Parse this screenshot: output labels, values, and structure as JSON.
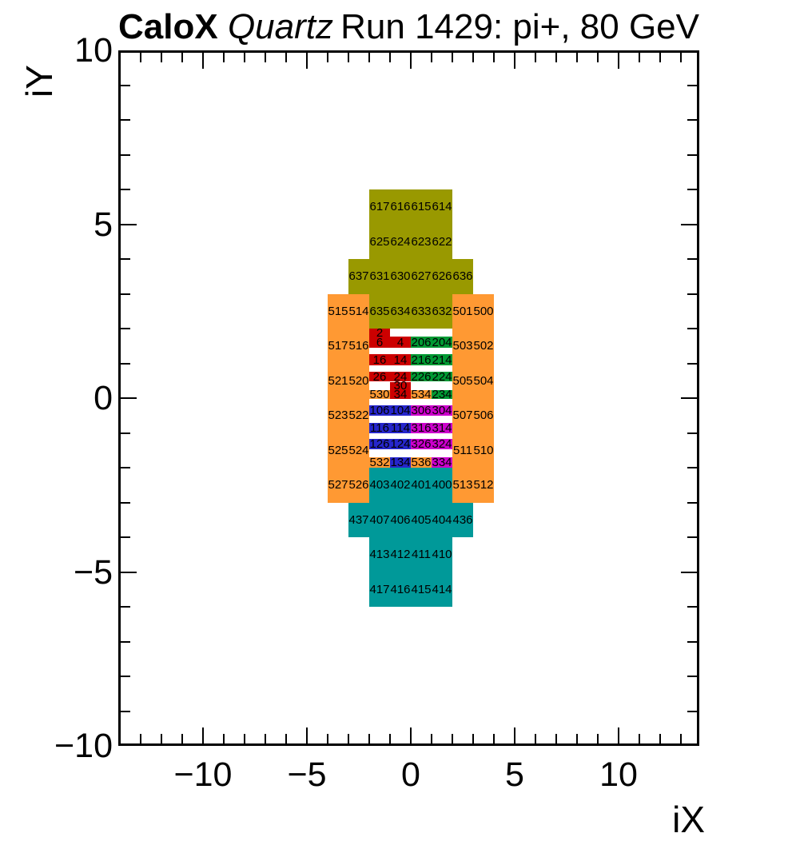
{
  "title": {
    "experiment": "CaloX",
    "subtitle": "Quartz",
    "run_info": "Run 1429: pi+, 80 GeV"
  },
  "axes": {
    "x": {
      "title": "iX",
      "major_ticks": [
        -10,
        -5,
        0,
        5,
        10
      ],
      "tick_labels": [
        "−10",
        "−5",
        "0",
        "5",
        "10"
      ],
      "minor_tick_step": 1,
      "range": [
        -14,
        14
      ]
    },
    "y": {
      "title": "iY",
      "major_ticks": [
        -10,
        -5,
        0,
        5,
        10
      ],
      "tick_labels": [
        "−10",
        "−5",
        "0",
        "5",
        "10"
      ],
      "minor_tick_step": 1,
      "range": [
        -10,
        10
      ]
    }
  },
  "colors": {
    "olive": "#999900",
    "orange": "#ff9933",
    "teal": "#009999",
    "red": "#cc0000",
    "green": "#009933",
    "blue": "#2626cc",
    "magenta": "#cc00cc",
    "frame": "#000000",
    "background": "#ffffff"
  },
  "chart_data": {
    "type": "heatmap",
    "title": "Run 1429: pi+, 80 GeV",
    "xlabel": "iX",
    "ylabel": "iY",
    "xlim": [
      -14,
      14
    ],
    "ylim": [
      -10,
      10
    ],
    "grid": false,
    "cell_format": "label, x = left edge (iX units), y = top edge (iY units), w, h (units), color key",
    "cells": [
      {
        "label": "617",
        "x": -2,
        "y": 6,
        "w": 1,
        "h": 1,
        "c": "olive"
      },
      {
        "label": "616",
        "x": -1,
        "y": 6,
        "w": 1,
        "h": 1,
        "c": "olive"
      },
      {
        "label": "615",
        "x": 0,
        "y": 6,
        "w": 1,
        "h": 1,
        "c": "olive"
      },
      {
        "label": "614",
        "x": 1,
        "y": 6,
        "w": 1,
        "h": 1,
        "c": "olive"
      },
      {
        "label": "625",
        "x": -2,
        "y": 5,
        "w": 1,
        "h": 1,
        "c": "olive"
      },
      {
        "label": "624",
        "x": -1,
        "y": 5,
        "w": 1,
        "h": 1,
        "c": "olive"
      },
      {
        "label": "623",
        "x": 0,
        "y": 5,
        "w": 1,
        "h": 1,
        "c": "olive"
      },
      {
        "label": "622",
        "x": 1,
        "y": 5,
        "w": 1,
        "h": 1,
        "c": "olive"
      },
      {
        "label": "637",
        "x": -3,
        "y": 4,
        "w": 1,
        "h": 1,
        "c": "olive"
      },
      {
        "label": "631",
        "x": -2,
        "y": 4,
        "w": 1,
        "h": 1,
        "c": "olive"
      },
      {
        "label": "630",
        "x": -1,
        "y": 4,
        "w": 1,
        "h": 1,
        "c": "olive"
      },
      {
        "label": "627",
        "x": 0,
        "y": 4,
        "w": 1,
        "h": 1,
        "c": "olive"
      },
      {
        "label": "626",
        "x": 1,
        "y": 4,
        "w": 1,
        "h": 1,
        "c": "olive"
      },
      {
        "label": "636",
        "x": 2,
        "y": 4,
        "w": 1,
        "h": 1,
        "c": "olive"
      },
      {
        "label": "635",
        "x": -2,
        "y": 3,
        "w": 1,
        "h": 1,
        "c": "olive"
      },
      {
        "label": "634",
        "x": -1,
        "y": 3,
        "w": 1,
        "h": 1,
        "c": "olive"
      },
      {
        "label": "633",
        "x": 0,
        "y": 3,
        "w": 1,
        "h": 1,
        "c": "olive"
      },
      {
        "label": "632",
        "x": 1,
        "y": 3,
        "w": 1,
        "h": 1,
        "c": "olive"
      },
      {
        "label": "515",
        "x": -4,
        "y": 3,
        "w": 1,
        "h": 1,
        "c": "orange"
      },
      {
        "label": "514",
        "x": -3,
        "y": 3,
        "w": 1,
        "h": 1,
        "c": "orange"
      },
      {
        "label": "501",
        "x": 2,
        "y": 3,
        "w": 1,
        "h": 1,
        "c": "orange"
      },
      {
        "label": "500",
        "x": 3,
        "y": 3,
        "w": 1,
        "h": 1,
        "c": "orange"
      },
      {
        "label": "517",
        "x": -4,
        "y": 2,
        "w": 1,
        "h": 1,
        "c": "orange"
      },
      {
        "label": "516",
        "x": -3,
        "y": 2,
        "w": 1,
        "h": 1,
        "c": "orange"
      },
      {
        "label": "503",
        "x": 2,
        "y": 2,
        "w": 1,
        "h": 1,
        "c": "orange"
      },
      {
        "label": "502",
        "x": 3,
        "y": 2,
        "w": 1,
        "h": 1,
        "c": "orange"
      },
      {
        "label": "521",
        "x": -4,
        "y": 1,
        "w": 1,
        "h": 1,
        "c": "orange"
      },
      {
        "label": "520",
        "x": -3,
        "y": 1,
        "w": 1,
        "h": 1,
        "c": "orange"
      },
      {
        "label": "505",
        "x": 2,
        "y": 1,
        "w": 1,
        "h": 1,
        "c": "orange"
      },
      {
        "label": "504",
        "x": 3,
        "y": 1,
        "w": 1,
        "h": 1,
        "c": "orange"
      },
      {
        "label": "523",
        "x": -4,
        "y": 0,
        "w": 1,
        "h": 1,
        "c": "orange"
      },
      {
        "label": "522",
        "x": -3,
        "y": 0,
        "w": 1,
        "h": 1,
        "c": "orange"
      },
      {
        "label": "507",
        "x": 2,
        "y": 0,
        "w": 1,
        "h": 1,
        "c": "orange"
      },
      {
        "label": "506",
        "x": 3,
        "y": 0,
        "w": 1,
        "h": 1,
        "c": "orange"
      },
      {
        "label": "525",
        "x": -4,
        "y": -1,
        "w": 1,
        "h": 1,
        "c": "orange"
      },
      {
        "label": "524",
        "x": -3,
        "y": -1,
        "w": 1,
        "h": 1,
        "c": "orange"
      },
      {
        "label": "511",
        "x": 2,
        "y": -1,
        "w": 1,
        "h": 1,
        "c": "orange"
      },
      {
        "label": "510",
        "x": 3,
        "y": -1,
        "w": 1,
        "h": 1,
        "c": "orange"
      },
      {
        "label": "527",
        "x": -4,
        "y": -2,
        "w": 1,
        "h": 1,
        "c": "orange"
      },
      {
        "label": "526",
        "x": -3,
        "y": -2,
        "w": 1,
        "h": 1,
        "c": "orange"
      },
      {
        "label": "513",
        "x": 2,
        "y": -2,
        "w": 1,
        "h": 1,
        "c": "orange"
      },
      {
        "label": "512",
        "x": 3,
        "y": -2,
        "w": 1,
        "h": 1,
        "c": "orange"
      },
      {
        "label": "403",
        "x": -2,
        "y": -2,
        "w": 1,
        "h": 1,
        "c": "teal"
      },
      {
        "label": "402",
        "x": -1,
        "y": -2,
        "w": 1,
        "h": 1,
        "c": "teal"
      },
      {
        "label": "401",
        "x": 0,
        "y": -2,
        "w": 1,
        "h": 1,
        "c": "teal"
      },
      {
        "label": "400",
        "x": 1,
        "y": -2,
        "w": 1,
        "h": 1,
        "c": "teal"
      },
      {
        "label": "437",
        "x": -3,
        "y": -3,
        "w": 1,
        "h": 1,
        "c": "teal"
      },
      {
        "label": "407",
        "x": -2,
        "y": -3,
        "w": 1,
        "h": 1,
        "c": "teal"
      },
      {
        "label": "406",
        "x": -1,
        "y": -3,
        "w": 1,
        "h": 1,
        "c": "teal"
      },
      {
        "label": "405",
        "x": 0,
        "y": -3,
        "w": 1,
        "h": 1,
        "c": "teal"
      },
      {
        "label": "404",
        "x": 1,
        "y": -3,
        "w": 1,
        "h": 1,
        "c": "teal"
      },
      {
        "label": "436",
        "x": 2,
        "y": -3,
        "w": 1,
        "h": 1,
        "c": "teal"
      },
      {
        "label": "413",
        "x": -2,
        "y": -4,
        "w": 1,
        "h": 1,
        "c": "teal"
      },
      {
        "label": "412",
        "x": -1,
        "y": -4,
        "w": 1,
        "h": 1,
        "c": "teal"
      },
      {
        "label": "411",
        "x": 0,
        "y": -4,
        "w": 1,
        "h": 1,
        "c": "teal"
      },
      {
        "label": "410",
        "x": 1,
        "y": -4,
        "w": 1,
        "h": 1,
        "c": "teal"
      },
      {
        "label": "417",
        "x": -2,
        "y": -5,
        "w": 1,
        "h": 1,
        "c": "teal"
      },
      {
        "label": "416",
        "x": -1,
        "y": -5,
        "w": 1,
        "h": 1,
        "c": "teal"
      },
      {
        "label": "415",
        "x": 0,
        "y": -5,
        "w": 1,
        "h": 1,
        "c": "teal"
      },
      {
        "label": "414",
        "x": 1,
        "y": -5,
        "w": 1,
        "h": 1,
        "c": "teal"
      },
      {
        "label": "2",
        "x": -2,
        "y": 2.0,
        "w": 1,
        "h": 0.24,
        "c": "red"
      },
      {
        "label": "6",
        "x": -2,
        "y": 1.76,
        "w": 1,
        "h": 0.31,
        "c": "red"
      },
      {
        "label": "4",
        "x": -1,
        "y": 1.76,
        "w": 1,
        "h": 0.31,
        "c": "red"
      },
      {
        "label": "206",
        "x": 0,
        "y": 1.76,
        "w": 1,
        "h": 0.31,
        "c": "green"
      },
      {
        "label": "204",
        "x": 1,
        "y": 1.76,
        "w": 1,
        "h": 0.31,
        "c": "green"
      },
      {
        "label": "16",
        "x": -2,
        "y": 1.26,
        "w": 1,
        "h": 0.32,
        "c": "red"
      },
      {
        "label": "14",
        "x": -1,
        "y": 1.26,
        "w": 1,
        "h": 0.32,
        "c": "red"
      },
      {
        "label": "216",
        "x": 0,
        "y": 1.26,
        "w": 1,
        "h": 0.32,
        "c": "green"
      },
      {
        "label": "214",
        "x": 1,
        "y": 1.26,
        "w": 1,
        "h": 0.32,
        "c": "green"
      },
      {
        "label": "26",
        "x": -2,
        "y": 0.76,
        "w": 1,
        "h": 0.29,
        "c": "red"
      },
      {
        "label": "24",
        "x": -1,
        "y": 0.76,
        "w": 1,
        "h": 0.29,
        "c": "red"
      },
      {
        "label": "226",
        "x": 0,
        "y": 0.76,
        "w": 1,
        "h": 0.29,
        "c": "green"
      },
      {
        "label": "224",
        "x": 1,
        "y": 0.76,
        "w": 1,
        "h": 0.29,
        "c": "green"
      },
      {
        "label": "30",
        "x": -1,
        "y": 0.47,
        "w": 1,
        "h": 0.23,
        "c": "red"
      },
      {
        "label": "530",
        "x": -2,
        "y": 0.24,
        "w": 1,
        "h": 0.27,
        "c": "orange"
      },
      {
        "label": "34",
        "x": -1,
        "y": 0.24,
        "w": 1,
        "h": 0.27,
        "c": "red"
      },
      {
        "label": "534",
        "x": 0,
        "y": 0.24,
        "w": 1,
        "h": 0.27,
        "c": "orange"
      },
      {
        "label": "234",
        "x": 1,
        "y": 0.24,
        "w": 1,
        "h": 0.27,
        "c": "green"
      },
      {
        "label": "106",
        "x": -2,
        "y": -0.2,
        "w": 1,
        "h": 0.31,
        "c": "blue"
      },
      {
        "label": "104",
        "x": -1,
        "y": -0.2,
        "w": 1,
        "h": 0.31,
        "c": "blue"
      },
      {
        "label": "306",
        "x": 0,
        "y": -0.2,
        "w": 1,
        "h": 0.31,
        "c": "magenta"
      },
      {
        "label": "304",
        "x": 1,
        "y": -0.2,
        "w": 1,
        "h": 0.31,
        "c": "magenta"
      },
      {
        "label": "116",
        "x": -2,
        "y": -0.7,
        "w": 1,
        "h": 0.31,
        "c": "blue"
      },
      {
        "label": "114",
        "x": -1,
        "y": -0.7,
        "w": 1,
        "h": 0.31,
        "c": "blue"
      },
      {
        "label": "316",
        "x": 0,
        "y": -0.7,
        "w": 1,
        "h": 0.31,
        "c": "magenta"
      },
      {
        "label": "314",
        "x": 1,
        "y": -0.7,
        "w": 1,
        "h": 0.31,
        "c": "magenta"
      },
      {
        "label": "126",
        "x": -2,
        "y": -1.17,
        "w": 1,
        "h": 0.3,
        "c": "blue"
      },
      {
        "label": "124",
        "x": -1,
        "y": -1.17,
        "w": 1,
        "h": 0.3,
        "c": "blue"
      },
      {
        "label": "326",
        "x": 0,
        "y": -1.17,
        "w": 1,
        "h": 0.3,
        "c": "magenta"
      },
      {
        "label": "324",
        "x": 1,
        "y": -1.17,
        "w": 1,
        "h": 0.3,
        "c": "magenta"
      },
      {
        "label": "532",
        "x": -2,
        "y": -1.69,
        "w": 1,
        "h": 0.3,
        "c": "orange"
      },
      {
        "label": "134",
        "x": -1,
        "y": -1.69,
        "w": 1,
        "h": 0.3,
        "c": "blue"
      },
      {
        "label": "536",
        "x": 0,
        "y": -1.69,
        "w": 1,
        "h": 0.3,
        "c": "orange"
      },
      {
        "label": "334",
        "x": 1,
        "y": -1.69,
        "w": 1,
        "h": 0.3,
        "c": "magenta"
      }
    ]
  }
}
